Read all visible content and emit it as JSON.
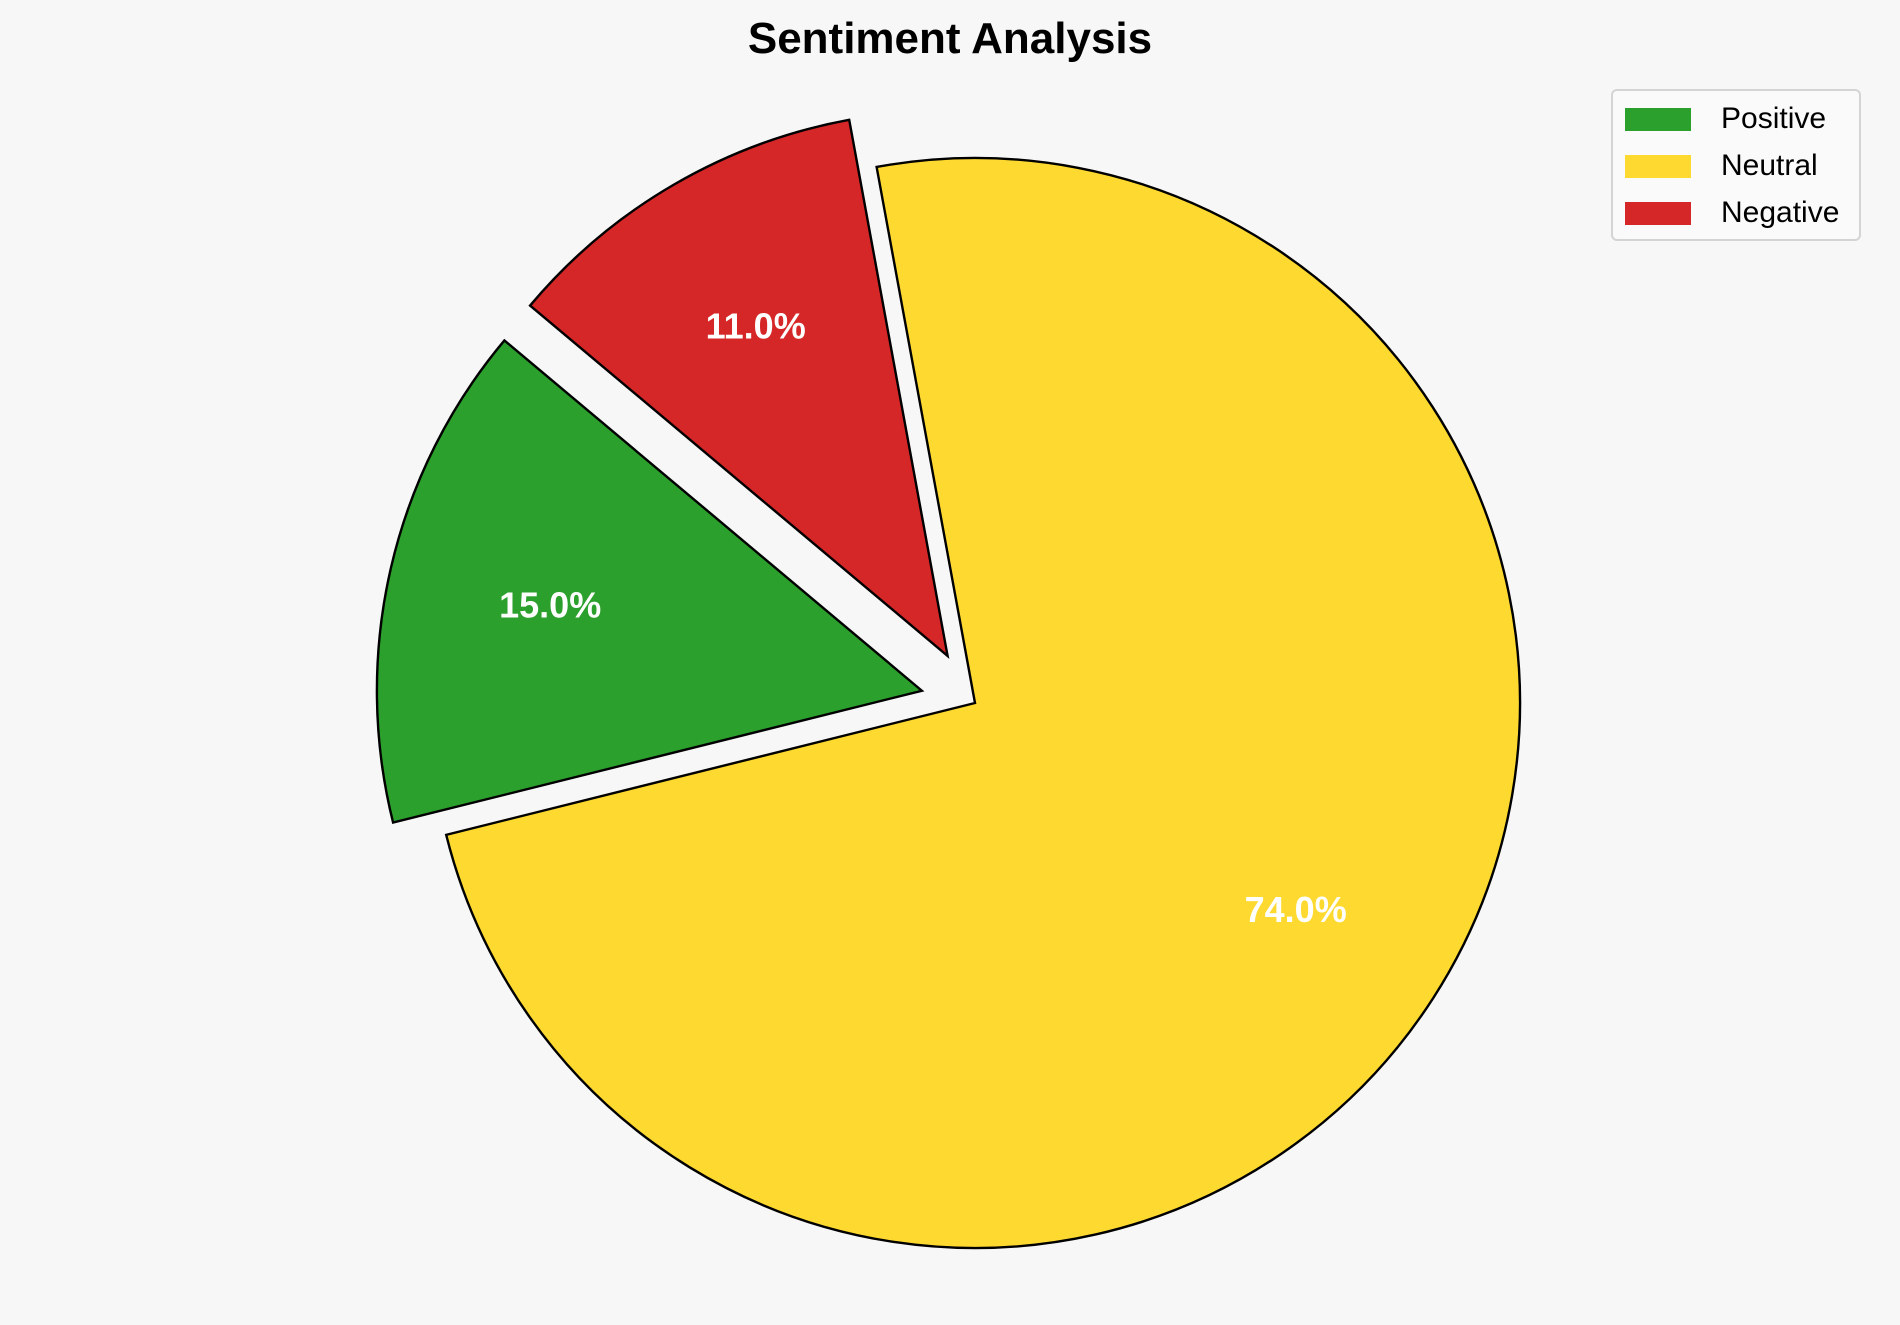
{
  "chart_data": {
    "type": "pie",
    "title": "Sentiment Analysis",
    "categories": [
      "Positive",
      "Neutral",
      "Negative"
    ],
    "values": [
      15.0,
      74.0,
      11.0
    ],
    "labels": [
      "15.0%",
      "74.0%",
      "11.0%"
    ],
    "colors": [
      "#2ca02c",
      "#fed930",
      "#d62728"
    ],
    "explode": [
      0.1,
      0,
      0.1
    ],
    "start_angle": 140,
    "legend_position": "top-right"
  }
}
